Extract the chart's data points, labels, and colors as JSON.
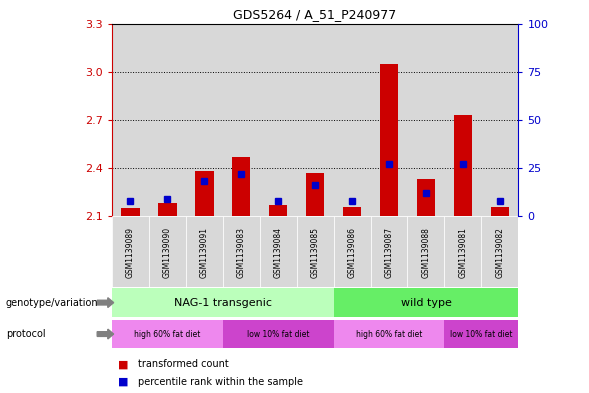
{
  "title": "GDS5264 / A_51_P240977",
  "samples": [
    "GSM1139089",
    "GSM1139090",
    "GSM1139091",
    "GSM1139083",
    "GSM1139084",
    "GSM1139085",
    "GSM1139086",
    "GSM1139087",
    "GSM1139088",
    "GSM1139081",
    "GSM1139082"
  ],
  "transformed_count": [
    2.15,
    2.18,
    2.38,
    2.47,
    2.17,
    2.37,
    2.16,
    3.05,
    2.33,
    2.73,
    2.16
  ],
  "percentile_rank": [
    8,
    9,
    18,
    22,
    8,
    16,
    8,
    27,
    12,
    27,
    8
  ],
  "ylim_left": [
    2.1,
    3.3
  ],
  "ylim_right": [
    0,
    100
  ],
  "yticks_left": [
    2.1,
    2.4,
    2.7,
    3.0,
    3.3
  ],
  "yticks_right": [
    0,
    25,
    50,
    75,
    100
  ],
  "left_axis_color": "#cc0000",
  "right_axis_color": "#0000cc",
  "bar_color_red": "#cc0000",
  "bar_color_blue": "#0000cc",
  "genotype_groups": [
    {
      "label": "NAG-1 transgenic",
      "start": 0,
      "end": 5,
      "color": "#bbffbb"
    },
    {
      "label": "wild type",
      "start": 6,
      "end": 10,
      "color": "#66ee66"
    }
  ],
  "protocol_groups": [
    {
      "label": "high 60% fat diet",
      "start": 0,
      "end": 2,
      "color": "#ee88ee"
    },
    {
      "label": "low 10% fat diet",
      "start": 3,
      "end": 5,
      "color": "#cc44cc"
    },
    {
      "label": "high 60% fat diet",
      "start": 6,
      "end": 8,
      "color": "#ee88ee"
    },
    {
      "label": "low 10% fat diet",
      "start": 9,
      "end": 10,
      "color": "#cc44cc"
    }
  ],
  "sample_bg_color": "#d8d8d8",
  "plot_bg_color": "#ffffff"
}
